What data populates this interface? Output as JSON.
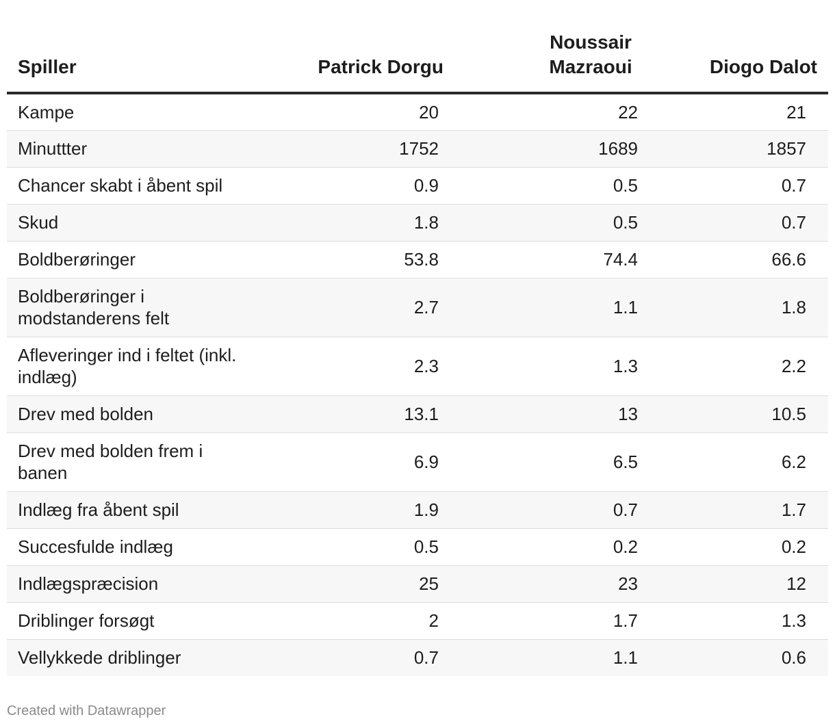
{
  "chart_data": {
    "type": "table",
    "columns": [
      "Spiller",
      "Patrick Dorgu",
      "Noussair Mazraoui",
      "Diogo Dalot"
    ],
    "rows": [
      {
        "label": "Kampe",
        "values": [
          "20",
          "22",
          "21"
        ]
      },
      {
        "label": "Minuttter",
        "values": [
          "1752",
          "1689",
          "1857"
        ]
      },
      {
        "label": "Chancer skabt i åbent spil",
        "values": [
          "0.9",
          "0.5",
          "0.7"
        ]
      },
      {
        "label": "Skud",
        "values": [
          "1.8",
          "0.5",
          "0.7"
        ]
      },
      {
        "label": "Boldberøringer",
        "values": [
          "53.8",
          "74.4",
          "66.6"
        ]
      },
      {
        "label": "Boldberøringer i modstanderens felt",
        "values": [
          "2.7",
          "1.1",
          "1.8"
        ]
      },
      {
        "label": "Afleveringer ind i feltet (inkl. indlæg)",
        "values": [
          "2.3",
          "1.3",
          "2.2"
        ]
      },
      {
        "label": "Drev med bolden",
        "values": [
          "13.1",
          "13",
          "10.5"
        ]
      },
      {
        "label": "Drev med bolden frem i banen",
        "values": [
          "6.9",
          "6.5",
          "6.2"
        ]
      },
      {
        "label": "Indlæg fra åbent spil",
        "values": [
          "1.9",
          "0.7",
          "1.7"
        ]
      },
      {
        "label": "Succesfulde indlæg",
        "values": [
          "0.5",
          "0.2",
          "0.2"
        ]
      },
      {
        "label": "Indlægspræcision",
        "values": [
          "25",
          "23",
          "12"
        ]
      },
      {
        "label": "Driblinger forsøgt",
        "values": [
          "2",
          "1.7",
          "1.3"
        ]
      },
      {
        "label": "Vellykkede driblinger",
        "values": [
          "0.7",
          "1.1",
          "0.6"
        ]
      }
    ]
  },
  "footer": {
    "credit": "Created with Datawrapper"
  }
}
